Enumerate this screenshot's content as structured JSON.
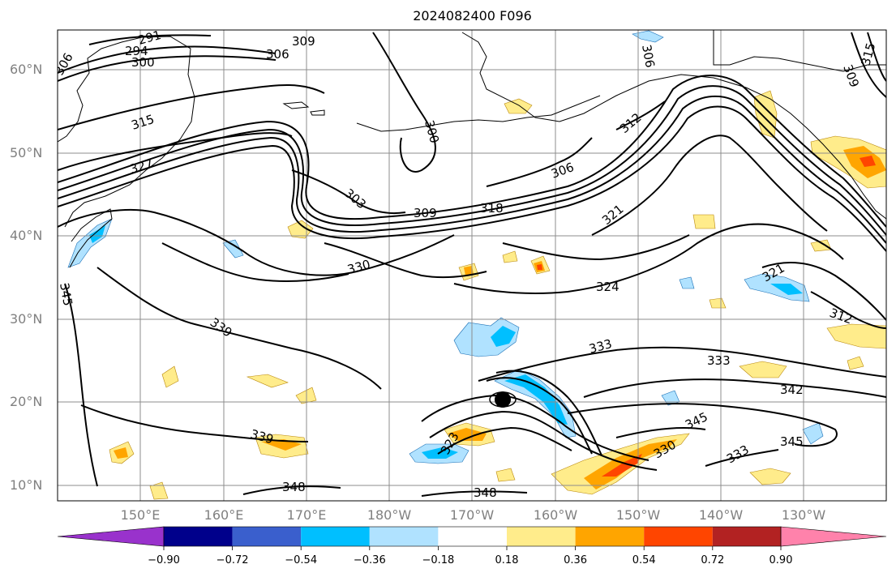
{
  "title": "2024082400 F096",
  "lat_labels": [
    "60°N",
    "50°N",
    "40°N",
    "30°N",
    "20°N",
    "10°N"
  ],
  "lon_labels": [
    "150°E",
    "160°E",
    "170°E",
    "180°W",
    "170°W",
    "160°W",
    "150°W",
    "140°W",
    "130°W"
  ],
  "contour_labels": [
    "291",
    "294",
    "300",
    "306",
    "309",
    "306",
    "315",
    "327",
    "300",
    "303",
    "309",
    "318",
    "306",
    "312",
    "321",
    "330",
    "324",
    "321",
    "312",
    "333",
    "333",
    "342",
    "345",
    "345",
    "339",
    "339",
    "348",
    "348",
    "306",
    "309",
    "315",
    "345",
    "333",
    "330",
    "323"
  ],
  "colorbar": {
    "ticks": [
      "−0.90",
      "−0.72",
      "−0.54",
      "−0.36",
      "−0.18",
      "0.18",
      "0.36",
      "0.54",
      "0.72",
      "0.90"
    ],
    "colors": [
      "#9932cc",
      "#00008b",
      "#3a5fcd",
      "#00bfff",
      "#b0e2ff",
      "#ffffff",
      "#ffec8b",
      "#ffa500",
      "#ff4500",
      "#b22222",
      "#ff82ab"
    ]
  },
  "colors": {
    "land_outline": "#000000",
    "grid": "#8c8c8c",
    "contour": "#000000",
    "axis_label": "#808080"
  }
}
